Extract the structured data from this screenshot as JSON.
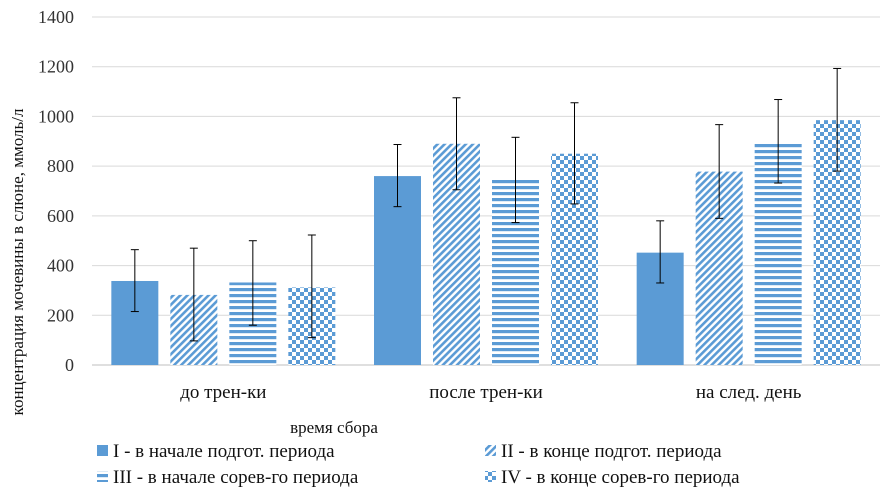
{
  "chart_data": {
    "type": "bar",
    "title": "",
    "xlabel": "время сбора",
    "ylabel": "концентрация мочевины в слюне, ммоль/л",
    "ylim": [
      0,
      1400
    ],
    "yticks": [
      0,
      200,
      400,
      600,
      800,
      1000,
      1200,
      1400
    ],
    "grid": true,
    "legend_position": "bottom",
    "categories": [
      "до трен-ки",
      "после трен-ки",
      "на след. день"
    ],
    "series": [
      {
        "name": "I - в начале подгот. периода",
        "pattern": "solid",
        "values": [
          338,
          760,
          452
        ],
        "err_low": [
          215,
          637,
          330
        ],
        "err_high": [
          464,
          887,
          580
        ]
      },
      {
        "name": "II - в конце подгот. периода",
        "pattern": "diagonal",
        "values": [
          282,
          890,
          778
        ],
        "err_low": [
          97,
          705,
          590
        ],
        "err_high": [
          470,
          1075,
          967
        ]
      },
      {
        "name": "III - в начале сорев-го периода",
        "pattern": "horizontal",
        "values": [
          332,
          745,
          890
        ],
        "err_low": [
          160,
          573,
          732
        ],
        "err_high": [
          500,
          916,
          1068
        ]
      },
      {
        "name": "IV - в конце сорев-го периода",
        "pattern": "checker",
        "values": [
          312,
          850,
          985
        ],
        "err_low": [
          110,
          648,
          780
        ],
        "err_high": [
          523,
          1055,
          1193
        ]
      }
    ],
    "colors": {
      "bar": "#5b9bd5",
      "grid": "#d9d9d9",
      "axis": "#bfbfbf",
      "error": "#000000"
    }
  }
}
